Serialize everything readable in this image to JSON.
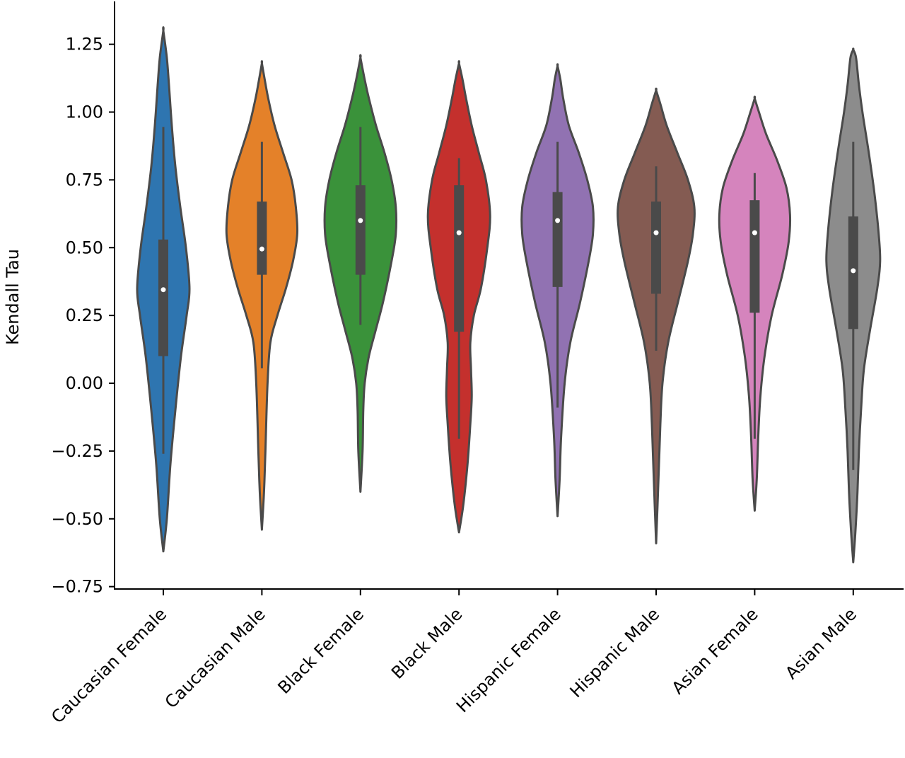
{
  "chart_data": {
    "type": "violin",
    "ylabel": "Kendall Tau",
    "xlabel": "",
    "ylim": [
      -0.77,
      1.4
    ],
    "yticks": [
      -0.75,
      -0.5,
      -0.25,
      0.0,
      0.25,
      0.5,
      0.75,
      1.0,
      1.25
    ],
    "ytick_labels": [
      "−0.75",
      "−0.50",
      "−0.25",
      "0.00",
      "0.25",
      "0.50",
      "0.75",
      "1.00",
      "1.25"
    ],
    "categories": [
      "Caucasian Female",
      "Caucasian Male",
      "Black Female",
      "Black Male",
      "Hispanic Female",
      "Hispanic Male",
      "Asian Female",
      "Asian Male"
    ],
    "series": [
      {
        "category": "Caucasian Female",
        "color": "#2E75B0",
        "min": -0.26,
        "q1": 0.1,
        "median": 0.345,
        "q3": 0.53,
        "max": 0.945,
        "profile": [
          [
            -0.62,
            0
          ],
          [
            -0.5,
            5
          ],
          [
            -0.3,
            10
          ],
          [
            -0.1,
            17
          ],
          [
            0.1,
            25
          ],
          [
            0.25,
            33
          ],
          [
            0.35,
            37
          ],
          [
            0.5,
            32
          ],
          [
            0.65,
            24
          ],
          [
            0.8,
            17
          ],
          [
            0.95,
            12
          ],
          [
            1.1,
            8
          ],
          [
            1.2,
            5
          ],
          [
            1.3,
            0
          ]
        ]
      },
      {
        "category": "Caucasian Male",
        "color": "#E48129",
        "min": 0.055,
        "q1": 0.4,
        "median": 0.495,
        "q3": 0.67,
        "max": 0.89,
        "profile": [
          [
            -0.54,
            0
          ],
          [
            -0.4,
            3
          ],
          [
            -0.25,
            5
          ],
          [
            0.0,
            8
          ],
          [
            0.15,
            12
          ],
          [
            0.25,
            22
          ],
          [
            0.35,
            34
          ],
          [
            0.45,
            44
          ],
          [
            0.55,
            50
          ],
          [
            0.65,
            48
          ],
          [
            0.75,
            42
          ],
          [
            0.85,
            30
          ],
          [
            0.95,
            18
          ],
          [
            1.05,
            9
          ],
          [
            1.12,
            4
          ],
          [
            1.18,
            0
          ]
        ]
      },
      {
        "category": "Black Female",
        "color": "#3A923A",
        "min": 0.215,
        "q1": 0.4,
        "median": 0.6,
        "q3": 0.73,
        "max": 0.945,
        "profile": [
          [
            -0.4,
            0
          ],
          [
            -0.25,
            3
          ],
          [
            -0.1,
            4
          ],
          [
            0.0,
            6
          ],
          [
            0.1,
            12
          ],
          [
            0.2,
            22
          ],
          [
            0.3,
            32
          ],
          [
            0.45,
            44
          ],
          [
            0.55,
            50
          ],
          [
            0.65,
            50
          ],
          [
            0.75,
            44
          ],
          [
            0.85,
            34
          ],
          [
            0.95,
            22
          ],
          [
            1.05,
            12
          ],
          [
            1.12,
            6
          ],
          [
            1.2,
            0
          ]
        ]
      },
      {
        "category": "Black Male",
        "color": "#C4302D",
        "min": -0.205,
        "q1": 0.19,
        "median": 0.555,
        "q3": 0.73,
        "max": 0.83,
        "profile": [
          [
            -0.55,
            0
          ],
          [
            -0.45,
            6
          ],
          [
            -0.3,
            12
          ],
          [
            -0.15,
            16
          ],
          [
            -0.05,
            18
          ],
          [
            0.05,
            17
          ],
          [
            0.15,
            16
          ],
          [
            0.25,
            21
          ],
          [
            0.35,
            31
          ],
          [
            0.5,
            40
          ],
          [
            0.62,
            44
          ],
          [
            0.75,
            38
          ],
          [
            0.85,
            28
          ],
          [
            0.95,
            18
          ],
          [
            1.05,
            10
          ],
          [
            1.12,
            5
          ],
          [
            1.18,
            0
          ]
        ]
      },
      {
        "category": "Hispanic Female",
        "color": "#9172B2",
        "min": -0.09,
        "q1": 0.355,
        "median": 0.6,
        "q3": 0.705,
        "max": 0.89,
        "profile": [
          [
            -0.49,
            0
          ],
          [
            -0.35,
            3
          ],
          [
            -0.2,
            5
          ],
          [
            0.0,
            10
          ],
          [
            0.15,
            18
          ],
          [
            0.3,
            32
          ],
          [
            0.45,
            44
          ],
          [
            0.55,
            50
          ],
          [
            0.65,
            50
          ],
          [
            0.75,
            42
          ],
          [
            0.85,
            30
          ],
          [
            0.95,
            16
          ],
          [
            1.05,
            8
          ],
          [
            1.12,
            4
          ],
          [
            1.17,
            0
          ]
        ]
      },
      {
        "category": "Hispanic Male",
        "color": "#845B52",
        "min": 0.12,
        "q1": 0.33,
        "median": 0.555,
        "q3": 0.67,
        "max": 0.8,
        "profile": [
          [
            -0.59,
            0
          ],
          [
            -0.45,
            2
          ],
          [
            -0.3,
            4
          ],
          [
            -0.15,
            6
          ],
          [
            0.0,
            9
          ],
          [
            0.15,
            17
          ],
          [
            0.3,
            31
          ],
          [
            0.45,
            45
          ],
          [
            0.55,
            52
          ],
          [
            0.65,
            54
          ],
          [
            0.75,
            45
          ],
          [
            0.85,
            30
          ],
          [
            0.95,
            15
          ],
          [
            1.03,
            6
          ],
          [
            1.08,
            0
          ]
        ]
      },
      {
        "category": "Asian Female",
        "color": "#D584BD",
        "min": -0.205,
        "q1": 0.26,
        "median": 0.555,
        "q3": 0.675,
        "max": 0.775,
        "profile": [
          [
            -0.47,
            0
          ],
          [
            -0.35,
            3
          ],
          [
            -0.2,
            5
          ],
          [
            -0.05,
            8
          ],
          [
            0.1,
            14
          ],
          [
            0.25,
            24
          ],
          [
            0.4,
            39
          ],
          [
            0.52,
            48
          ],
          [
            0.62,
            50
          ],
          [
            0.72,
            45
          ],
          [
            0.82,
            32
          ],
          [
            0.92,
            16
          ],
          [
            1.0,
            6
          ],
          [
            1.05,
            0
          ]
        ]
      },
      {
        "category": "Asian Male",
        "color": "#8C8C8C",
        "min": -0.32,
        "q1": 0.2,
        "median": 0.415,
        "q3": 0.615,
        "max": 0.89,
        "profile": [
          [
            -0.66,
            0
          ],
          [
            -0.55,
            3
          ],
          [
            -0.4,
            6
          ],
          [
            -0.25,
            8
          ],
          [
            -0.1,
            11
          ],
          [
            0.05,
            15
          ],
          [
            0.2,
            24
          ],
          [
            0.35,
            34
          ],
          [
            0.45,
            38
          ],
          [
            0.55,
            36
          ],
          [
            0.7,
            30
          ],
          [
            0.85,
            22
          ],
          [
            1.0,
            13
          ],
          [
            1.1,
            8
          ],
          [
            1.2,
            4
          ],
          [
            1.23,
            0
          ]
        ]
      }
    ]
  }
}
